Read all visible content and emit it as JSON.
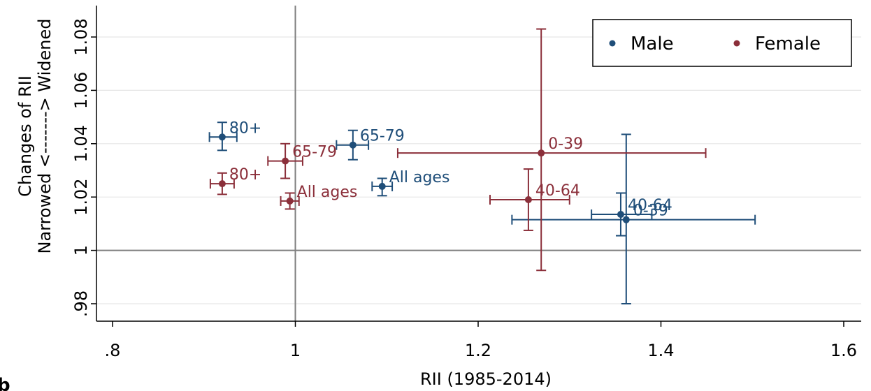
{
  "chart_data": {
    "type": "scatter",
    "xlabel": "RII (1985-2014)",
    "ylabel_line1": "Changes of RII",
    "ylabel_line2": "Narrowed <-------> Widened",
    "xlim": [
      0.8,
      1.6
    ],
    "ylim": [
      0.975,
      1.09
    ],
    "xticks": [
      0.8,
      1.0,
      1.2,
      1.4,
      1.6
    ],
    "xtick_labels": [
      ".8",
      "1",
      "1.2",
      "1.4",
      "1.6"
    ],
    "yticks": [
      0.98,
      1.0,
      1.02,
      1.04,
      1.06,
      1.08
    ],
    "ytick_labels": [
      ".98",
      "1",
      "1.02",
      "1.04",
      "1.06",
      "1.08"
    ],
    "reference_lines": {
      "x": 1.0,
      "y": 1.0
    },
    "grid": "horizontal",
    "legend_position": "top-right",
    "panel_letter": "b",
    "series": [
      {
        "name": "Male",
        "color": "#1f4e79",
        "points": [
          {
            "label": "80+",
            "x": 0.92,
            "y": 1.0425,
            "xerr": [
              0.906,
              0.936
            ],
            "yerr": [
              1.0375,
              1.048
            ]
          },
          {
            "label": "65-79",
            "x": 1.063,
            "y": 1.0395,
            "xerr": [
              1.045,
              1.08
            ],
            "yerr": [
              1.034,
              1.045
            ]
          },
          {
            "label": "All ages",
            "x": 1.095,
            "y": 1.024,
            "xerr": [
              1.084,
              1.106
            ],
            "yerr": [
              1.0205,
              1.027
            ]
          },
          {
            "label": "40-64",
            "x": 1.356,
            "y": 1.0135,
            "xerr": [
              1.324,
              1.39
            ],
            "yerr": [
              1.0055,
              1.0215
            ]
          },
          {
            "label": "0-39",
            "x": 1.362,
            "y": 1.0115,
            "xerr": [
              1.237,
              1.503
            ],
            "yerr": [
              0.98,
              1.0435
            ]
          }
        ]
      },
      {
        "name": "Female",
        "color": "#8b2f3a",
        "points": [
          {
            "label": "80+",
            "x": 0.92,
            "y": 1.025,
            "xerr": [
              0.907,
              0.933
            ],
            "yerr": [
              1.021,
              1.029
            ]
          },
          {
            "label": "65-79",
            "x": 0.989,
            "y": 1.0335,
            "xerr": [
              0.97,
              1.008
            ],
            "yerr": [
              1.027,
              1.04
            ]
          },
          {
            "label": "All ages",
            "x": 0.994,
            "y": 1.0185,
            "xerr": [
              0.984,
              1.004
            ],
            "yerr": [
              1.0155,
              1.0215
            ]
          },
          {
            "label": "40-64",
            "x": 1.255,
            "y": 1.019,
            "xerr": [
              1.213,
              1.3
            ],
            "yerr": [
              1.0075,
              1.0305
            ]
          },
          {
            "label": "0-39",
            "x": 1.269,
            "y": 1.0365,
            "xerr": [
              1.112,
              1.449
            ],
            "yerr": [
              0.9925,
              1.083
            ]
          }
        ]
      }
    ]
  }
}
